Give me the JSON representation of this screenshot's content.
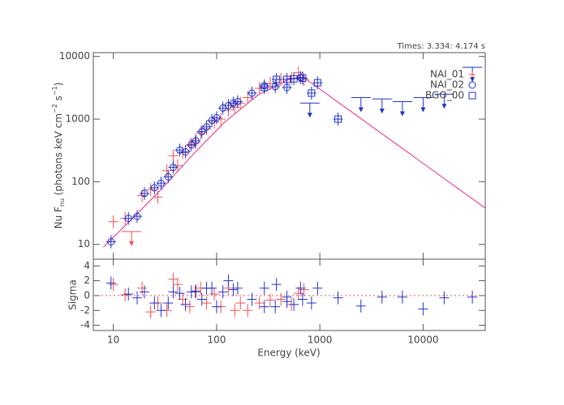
{
  "chart_data": [
    {
      "type": "scatter",
      "title": "Times: 3.334: 4.174 s",
      "y_label": [
        "Nu F",
        "nu",
        " (photons keV cm",
        "−2",
        " s",
        "−1",
        ")"
      ],
      "log_x": true,
      "log_y": true,
      "xlim": [
        6.4,
        40000
      ],
      "ylim": [
        5.8,
        11500
      ],
      "xticks": [
        10,
        100,
        1000,
        10000
      ],
      "yticks": [
        10,
        100,
        1000,
        10000
      ],
      "legend": "top-right",
      "series": [
        {
          "name": "NAI_01",
          "marker": "plus",
          "color": "#f0504f",
          "x": [
            10,
            13,
            19,
            23,
            27,
            33,
            38,
            42,
            47,
            55,
            62,
            70,
            80,
            95,
            110,
            130,
            150,
            170,
            200,
            260,
            330,
            420,
            530,
            620,
            700
          ],
          "values": [
            23,
            26,
            60,
            75,
            57,
            150,
            260,
            180,
            290,
            380,
            420,
            600,
            700,
            900,
            1000,
            1400,
            1550,
            1800,
            2200,
            3100,
            3700,
            4300,
            4500,
            5500,
            4300
          ],
          "upper_limits": {
            "x": [
              15
            ],
            "values": [
              16
            ]
          }
        },
        {
          "name": "NAI_02",
          "marker": "circle",
          "color": "#2233cc",
          "x": [
            9.5,
            14,
            17,
            20,
            25,
            29,
            34,
            38,
            44,
            50,
            57,
            63,
            72,
            80,
            90,
            100,
            115,
            130,
            145,
            160,
            220,
            290,
            370,
            480,
            650
          ],
          "values": [
            11,
            26,
            28,
            65,
            80,
            95,
            120,
            170,
            320,
            300,
            390,
            450,
            630,
            750,
            950,
            1050,
            1500,
            1650,
            1800,
            1900,
            2600,
            3400,
            3300,
            3200,
            4600
          ],
          "upper_limits": {
            "x": [
              800
            ],
            "values": [
              1800
            ]
          }
        },
        {
          "name": "BGO_00",
          "marker": "square",
          "color": "#2233cc",
          "x": [
            290,
            380,
            480,
            560,
            680,
            830,
            950,
            1500
          ],
          "values": [
            3200,
            4300,
            4300,
            4400,
            4500,
            2600,
            3800,
            1000
          ],
          "upper_limits": {
            "x": [
              2500,
              4000,
              6300,
              10000,
              16000,
              30000
            ],
            "values": [
              2200,
              2100,
              1900,
              2200,
              2500,
              6700
            ]
          }
        }
      ],
      "model": {
        "color": "#ee2288",
        "x": [
          8,
          15,
          30,
          60,
          120,
          250,
          500,
          700,
          40000
        ],
        "values": [
          9,
          25,
          80,
          280,
          900,
          2400,
          4300,
          4600,
          38
        ]
      }
    },
    {
      "type": "scatter",
      "x_label": "Energy (keV)",
      "y_label": "Sigma",
      "log_x": true,
      "xlim": [
        6.4,
        40000
      ],
      "ylim": [
        -4.7,
        4.9
      ],
      "xticks": [
        10,
        100,
        1000,
        10000
      ],
      "yticks": [
        -4,
        -2,
        0,
        2,
        4
      ],
      "reference_line": {
        "value": 0,
        "color": "#f0504f"
      },
      "series": [
        {
          "marker": "plus",
          "color": "#f0504f",
          "x": [
            10,
            13,
            19,
            23,
            27,
            33,
            38,
            42,
            47,
            55,
            62,
            70,
            80,
            95,
            110,
            130,
            150,
            170,
            200,
            260,
            330,
            420,
            530,
            620,
            700
          ],
          "values": [
            1.5,
            0.1,
            1,
            -2.2,
            -1,
            -2,
            2.2,
            1.5,
            -0.5,
            -1.5,
            0.5,
            1,
            -1,
            0.2,
            -1.5,
            1,
            -2,
            -1,
            -2,
            -1,
            -0.6,
            -0.5,
            -1.2,
            0.3,
            0.8
          ]
        },
        {
          "marker": "plus",
          "color": "#2233cc",
          "x": [
            9.5,
            14,
            17,
            20,
            25,
            29,
            34,
            38,
            44,
            50,
            57,
            63,
            72,
            80,
            90,
            100,
            115,
            130,
            145,
            160,
            220,
            290,
            370,
            480,
            650
          ],
          "values": [
            1.7,
            0.2,
            -0.3,
            0.5,
            -1,
            -2,
            -1,
            0.5,
            0.3,
            -1.2,
            0.5,
            0.6,
            -0.5,
            1,
            1,
            -1.5,
            0.5,
            2,
            0.8,
            1,
            -0.5,
            1,
            -1.5,
            -0.2,
            1
          ]
        },
        {
          "marker": "plus",
          "color": "#2233cc",
          "x": [
            290,
            380,
            480,
            560,
            680,
            830,
            950,
            1500,
            2500,
            4000,
            6300,
            10000,
            16000,
            30000
          ],
          "values": [
            -1.5,
            1.5,
            -0.8,
            -1.2,
            -0.5,
            -1,
            1,
            -0.3,
            -1.4,
            -0.2,
            -0.2,
            -1.8,
            -0.3,
            -0.2
          ]
        }
      ]
    }
  ]
}
